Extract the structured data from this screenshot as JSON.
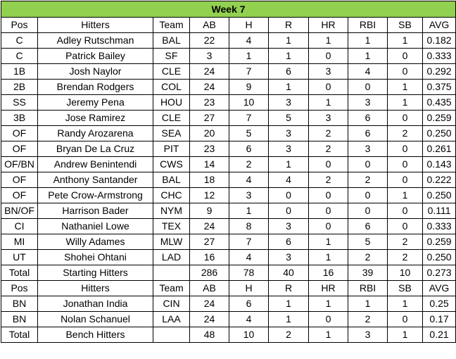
{
  "title": "Week 7",
  "header": [
    "Pos",
    "Hitters",
    "Team",
    "AB",
    "H",
    "R",
    "HR",
    "RBI",
    "SB",
    "AVG"
  ],
  "starters": [
    [
      "C",
      "Adley Rutschman",
      "BAL",
      "22",
      "4",
      "1",
      "1",
      "1",
      "1",
      "0.182"
    ],
    [
      "C",
      "Patrick Bailey",
      "SF",
      "3",
      "1",
      "1",
      "0",
      "1",
      "0",
      "0.333"
    ],
    [
      "1B",
      "Josh Naylor",
      "CLE",
      "24",
      "7",
      "6",
      "3",
      "4",
      "0",
      "0.292"
    ],
    [
      "2B",
      "Brendan Rodgers",
      "COL",
      "24",
      "9",
      "1",
      "0",
      "0",
      "1",
      "0.375"
    ],
    [
      "SS",
      "Jeremy Pena",
      "HOU",
      "23",
      "10",
      "3",
      "1",
      "3",
      "1",
      "0.435"
    ],
    [
      "3B",
      "Jose Ramirez",
      "CLE",
      "27",
      "7",
      "5",
      "3",
      "6",
      "0",
      "0.259"
    ],
    [
      "OF",
      "Randy Arozarena",
      "SEA",
      "20",
      "5",
      "3",
      "2",
      "6",
      "2",
      "0.250"
    ],
    [
      "OF",
      "Bryan De La Cruz",
      "PIT",
      "23",
      "6",
      "3",
      "2",
      "3",
      "0",
      "0.261"
    ],
    [
      "OF/BN",
      "Andrew Benintendi",
      "CWS",
      "14",
      "2",
      "1",
      "0",
      "0",
      "0",
      "0.143"
    ],
    [
      "OF",
      "Anthony Santander",
      "BAL",
      "18",
      "4",
      "4",
      "2",
      "2",
      "0",
      "0.222"
    ],
    [
      "OF",
      "Pete Crow-Armstrong",
      "CHC",
      "12",
      "3",
      "0",
      "0",
      "0",
      "1",
      "0.250"
    ],
    [
      "BN/OF",
      "Harrison Bader",
      "NYM",
      "9",
      "1",
      "0",
      "0",
      "0",
      "0",
      "0.111"
    ],
    [
      "CI",
      "Nathaniel Lowe",
      "TEX",
      "24",
      "8",
      "3",
      "0",
      "6",
      "0",
      "0.333"
    ],
    [
      "MI",
      "Willy Adames",
      "MLW",
      "27",
      "7",
      "6",
      "1",
      "5",
      "2",
      "0.259"
    ],
    [
      "UT",
      "Shohei Ohtani",
      "LAD",
      "16",
      "4",
      "3",
      "1",
      "2",
      "2",
      "0.250"
    ]
  ],
  "starters_total": [
    "Total",
    "Starting Hitters",
    "",
    "286",
    "78",
    "40",
    "16",
    "39",
    "10",
    "0.273"
  ],
  "bench_header": [
    "Pos",
    "Hitters",
    "Team",
    "AB",
    "H",
    "R",
    "HR",
    "RBI",
    "SB",
    "AVG"
  ],
  "bench": [
    [
      "BN",
      "Jonathan India",
      "CIN",
      "24",
      "6",
      "1",
      "1",
      "1",
      "1",
      "0.25"
    ],
    [
      "BN",
      "Nolan Schanuel",
      "LAA",
      "24",
      "4",
      "1",
      "0",
      "2",
      "0",
      "0.17"
    ]
  ],
  "bench_total": [
    "Total",
    "Bench Hitters",
    "",
    "48",
    "10",
    "2",
    "1",
    "3",
    "1",
    "0.21"
  ],
  "colors": {
    "title_bg": "#92d050",
    "border": "#000000"
  }
}
